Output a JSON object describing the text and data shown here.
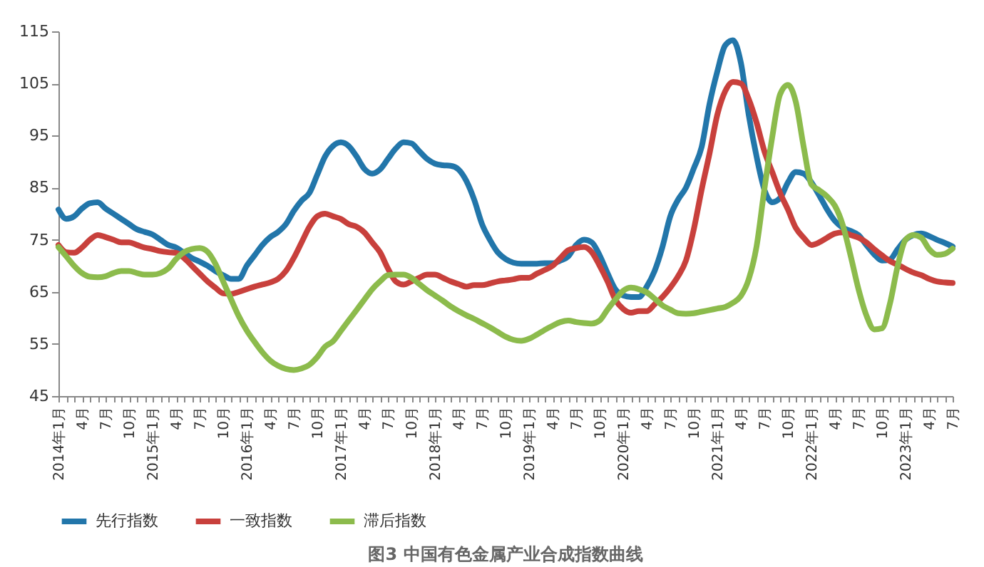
{
  "chart_data": {
    "type": "line",
    "title": "图3 中国有色金属产业合成指数曲线",
    "categories": [
      "2014年1月",
      null,
      null,
      "4月",
      null,
      null,
      "7月",
      null,
      null,
      "10月",
      null,
      null,
      "2015年1月",
      null,
      null,
      "4月",
      null,
      null,
      "7月",
      null,
      null,
      "10月",
      null,
      null,
      "2016年1月",
      null,
      null,
      "4月",
      null,
      null,
      "7月",
      null,
      null,
      "10月",
      null,
      null,
      "2017年1月",
      null,
      null,
      "4月",
      null,
      null,
      "7月",
      null,
      null,
      "10月",
      null,
      null,
      "2018年1月",
      null,
      null,
      "4月",
      null,
      null,
      "7月",
      null,
      null,
      "10月",
      null,
      null,
      "2019年1月",
      null,
      null,
      "4月",
      null,
      null,
      "7月",
      null,
      null,
      "10月",
      null,
      null,
      "2020年1月",
      null,
      null,
      "4月",
      null,
      null,
      "7月",
      null,
      null,
      "10月",
      null,
      null,
      "2021年1月",
      null,
      null,
      "4月",
      null,
      null,
      "7月",
      null,
      null,
      "10月",
      null,
      null,
      "2022年1月",
      null,
      null,
      "4月",
      null,
      null,
      "7月",
      null,
      null,
      "10月",
      null,
      null,
      "2023年1月",
      null,
      null,
      "4月",
      null,
      null,
      "7月"
    ],
    "series": [
      {
        "name": "先行指数",
        "color": "#2276aa",
        "values": [
          80.8,
          79,
          79.5,
          81,
          82,
          82.2,
          81,
          80,
          79,
          78,
          77,
          76.5,
          76,
          75,
          74,
          73.5,
          72.5,
          71.5,
          70.8,
          70,
          69,
          68.2,
          67.5,
          67.5,
          70,
          72,
          74,
          75.5,
          76.5,
          78,
          80.5,
          82.5,
          84,
          87.5,
          91,
          93,
          93.7,
          93,
          91,
          88.6,
          87.7,
          88.5,
          90.5,
          92.5,
          93.7,
          93.5,
          92,
          90.5,
          89.6,
          89.3,
          89.2,
          88.5,
          86.3,
          82.7,
          78,
          75,
          72.6,
          71.3,
          70.6,
          70.4,
          70.4,
          70.4,
          70.5,
          70.5,
          71,
          71.8,
          74,
          75,
          74.5,
          72,
          68.6,
          65.5,
          64.3,
          64,
          64,
          66,
          69,
          73.6,
          79.5,
          82.7,
          85,
          88.7,
          92.8,
          101,
          107.3,
          112.3,
          113.3,
          109,
          99,
          91,
          84.6,
          82.2,
          83,
          86,
          88,
          87.7,
          86,
          83.5,
          80.8,
          78.6,
          77.3,
          76.7,
          75.9,
          74,
          72.2,
          71,
          71.2,
          73.2,
          75,
          75.9,
          76.2,
          75.7,
          75,
          74.4,
          73.7
        ]
      },
      {
        "name": "一致指数",
        "color": "#c8403c",
        "values": [
          74,
          72.6,
          72.5,
          73.5,
          75,
          75.9,
          75.5,
          75,
          74.5,
          74.5,
          74,
          73.5,
          73.2,
          72.8,
          72.6,
          72.5,
          71.5,
          70,
          68.5,
          67,
          65.8,
          64.7,
          64.6,
          65,
          65.5,
          66,
          66.4,
          66.8,
          67.5,
          69,
          71.5,
          74.5,
          77.5,
          79.5,
          80,
          79.5,
          79,
          78,
          77.5,
          76.4,
          74.5,
          72.6,
          69.5,
          67,
          66.4,
          67,
          67.7,
          68.3,
          68.3,
          67.7,
          67,
          66.5,
          66,
          66.3,
          66.3,
          66.6,
          67,
          67.2,
          67.4,
          67.7,
          67.7,
          68.5,
          69.2,
          70,
          71.5,
          73,
          73.4,
          73.6,
          72.6,
          70,
          67,
          63.5,
          61.7,
          61,
          61.3,
          61.3,
          62.6,
          64,
          65.8,
          68,
          71,
          77,
          84.6,
          91.5,
          99,
          103.5,
          105.3,
          105,
          102,
          97.5,
          92,
          88,
          84,
          80.8,
          77.3,
          75.4,
          74,
          74.5,
          75.4,
          76.2,
          76.4,
          75.9,
          75.4,
          74.5,
          73.2,
          72,
          70.9,
          70.2,
          69.4,
          68.7,
          68.2,
          67.5,
          67,
          66.8,
          66.7
        ]
      },
      {
        "name": "滞后指数",
        "color": "#8cbb4c",
        "values": [
          73.6,
          71.8,
          70,
          68.6,
          67.9,
          67.8,
          68,
          68.6,
          69,
          69,
          68.6,
          68.3,
          68.3,
          68.6,
          69.5,
          71.3,
          72.6,
          73.2,
          73.4,
          72.7,
          70.4,
          67,
          63.6,
          60.3,
          57.6,
          55.4,
          53.4,
          51.8,
          50.8,
          50.2,
          50,
          50.3,
          51,
          52.5,
          54.5,
          55.5,
          57.5,
          59.5,
          61.5,
          63.5,
          65.5,
          67,
          68.2,
          68.3,
          68.3,
          67.7,
          66.5,
          65.3,
          64.3,
          63.3,
          62.2,
          61.3,
          60.5,
          59.8,
          59,
          58.2,
          57.3,
          56.4,
          55.8,
          55.6,
          56,
          56.8,
          57.7,
          58.5,
          59.2,
          59.5,
          59.2,
          59,
          58.9,
          59.5,
          61.6,
          63.5,
          65.2,
          65.8,
          65.5,
          64.9,
          63.7,
          62.4,
          61.6,
          60.9,
          60.8,
          60.9,
          61.2,
          61.5,
          61.8,
          62.1,
          62.9,
          64.2,
          67.4,
          73.7,
          84.7,
          94.7,
          102.9,
          104.7,
          101.5,
          92.9,
          85.6,
          84.5,
          83.3,
          81.5,
          77.8,
          71.9,
          65.5,
          60.5,
          57.8,
          58,
          62.7,
          70,
          75,
          75.9,
          75.4,
          73.2,
          72.1,
          72.3,
          73.3
        ]
      }
    ],
    "ylim": [
      45,
      115
    ],
    "yticks": [
      45,
      55,
      65,
      75,
      85,
      95,
      105,
      115
    ],
    "legend": "bottom"
  }
}
